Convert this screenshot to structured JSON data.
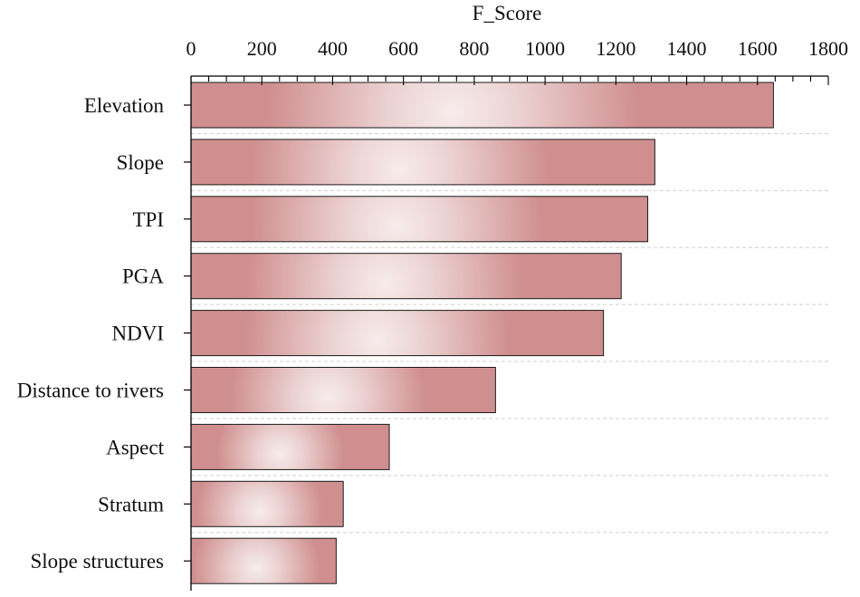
{
  "chart_data": {
    "type": "bar",
    "orientation": "horizontal",
    "title": "",
    "xlabel": "F_Score",
    "ylabel": "",
    "xlim": [
      0,
      1800
    ],
    "x_ticks": [
      "0",
      "200",
      "400",
      "600",
      "800",
      "1000",
      "1200",
      "1400",
      "1600",
      "1800"
    ],
    "x_axis_position": "top",
    "grid": "horizontal dashed",
    "legend": "none",
    "categories": [
      "Elevation",
      "Slope",
      "TPI",
      "PGA",
      "NDVI",
      "Distance to rivers",
      "Aspect",
      "Stratum",
      "Slope structures"
    ],
    "values": [
      1645,
      1310,
      1290,
      1215,
      1165,
      860,
      560,
      430,
      410
    ],
    "colors": {
      "bar": "#d08f8f",
      "bar_highlight": "#f7ecec",
      "edge": "#1a1a1a",
      "grid": "#d0d0d0"
    }
  }
}
